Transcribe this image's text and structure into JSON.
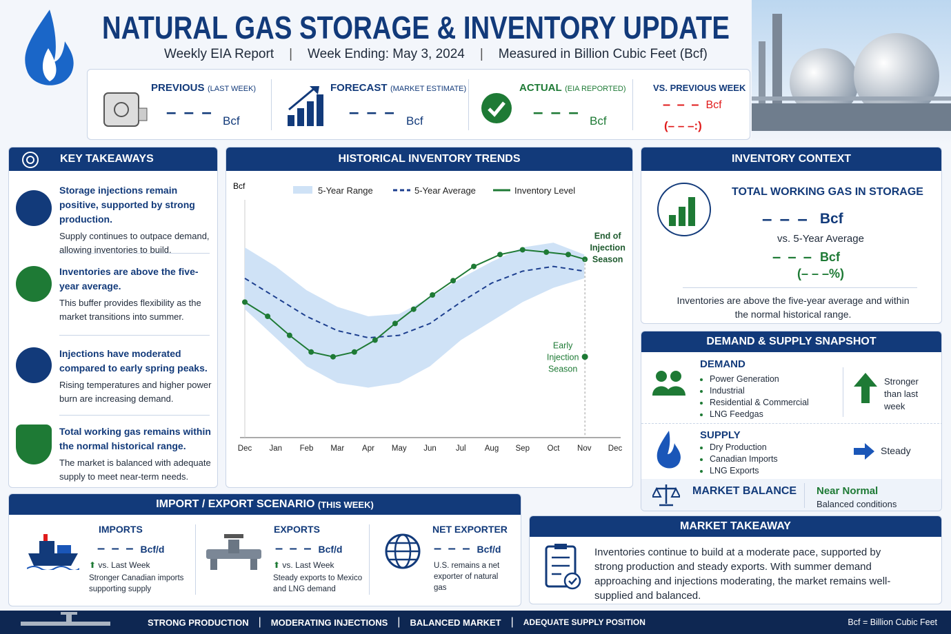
{
  "header": {
    "title": "NATURAL GAS STORAGE & INVENTORY UPDATE",
    "subtitle_parts": [
      "Weekly EIA Report",
      "Week Ending: May 3, 2024",
      "Measured in Billion Cubic Feet (Bcf)"
    ]
  },
  "summary": [
    {
      "label": "PREVIOUS",
      "note": "(LAST WEEK)",
      "value": "– – –",
      "unit": "Bcf"
    },
    {
      "label": "FORECAST",
      "note": "(MARKET ESTIMATE)",
      "value": "– – –",
      "unit": "Bcf"
    },
    {
      "label": "ACTUAL",
      "note": "(EIA REPORTED)",
      "value": "– – –",
      "unit": "Bcf"
    },
    {
      "label": "VS. PREVIOUS WEEK",
      "value": "– – –",
      "unit": "Bcf",
      "change": "(– – –:)"
    }
  ],
  "key_takeaways": {
    "title": "KEY TAKEAWAYS",
    "items": [
      {
        "heading": "Storage injections remain positive, supported by strong production.",
        "body": "Supply continues to outpace demand, allowing inventories to build."
      },
      {
        "heading": "Inventories are above the five-year average.",
        "body": "This buffer provides flexibility as the market transitions into summer."
      },
      {
        "heading": "Injections have moderated compared to early spring peaks.",
        "body": "Rising temperatures and higher power burn are increasing demand."
      },
      {
        "heading": "Total working gas remains within the normal historical range.",
        "body": "The market is balanced with adequate supply to meet near-term needs."
      }
    ]
  },
  "chart_data": {
    "type": "line",
    "title": "HISTORICAL INVENTORY TRENDS",
    "ylabel": "Bcf",
    "xlim": [
      0,
      12
    ],
    "ylim": [
      0,
      100
    ],
    "xticks": [
      {
        "value": 0,
        "label": "Dec"
      },
      {
        "value": 1,
        "label": "Jan"
      },
      {
        "value": 2,
        "label": "Feb"
      },
      {
        "value": 3,
        "label": "Mar"
      },
      {
        "value": 4,
        "label": "Apr"
      },
      {
        "value": 5,
        "label": "May"
      },
      {
        "value": 6,
        "label": "Jun"
      },
      {
        "value": 7,
        "label": "Jul"
      },
      {
        "value": 8,
        "label": "Aug"
      },
      {
        "value": 9,
        "label": "Sep"
      },
      {
        "value": 10,
        "label": "Oct"
      },
      {
        "value": 11,
        "label": "Nov"
      },
      {
        "value": 12,
        "label": "Dec"
      }
    ],
    "series": [
      {
        "name": "5-Year Range",
        "color": "#cfe2f6",
        "x": [
          0,
          1,
          2,
          3,
          4,
          5,
          6,
          7,
          8,
          9,
          10,
          11
        ],
        "upper": [
          80,
          72,
          62,
          55,
          51,
          52,
          59,
          67,
          74,
          80,
          82,
          77
        ],
        "lower": [
          54,
          42,
          30,
          23,
          21,
          23,
          30,
          41,
          49,
          57,
          63,
          67
        ]
      },
      {
        "name": "5-Year Average",
        "color": "#1d3f8f",
        "dashed": true,
        "x": [
          0,
          1,
          2,
          3,
          4,
          5,
          6,
          7,
          8,
          9,
          10,
          11
        ],
        "values": [
          67,
          59,
          51,
          45,
          42,
          43,
          48,
          57,
          65,
          70,
          72,
          70
        ]
      },
      {
        "name": "Inventory Level",
        "color": "#1e7a35",
        "markers": true,
        "x": [
          0,
          0.74,
          1.45,
          2.15,
          2.86,
          3.55,
          4.22,
          4.87,
          5.47,
          6.08,
          6.75,
          7.42,
          8.27,
          9.0,
          9.77,
          10.48,
          11.02
        ],
        "values": [
          57,
          51,
          43,
          36,
          34,
          36,
          41,
          48,
          54,
          60,
          66,
          72,
          77,
          79,
          78,
          77,
          75
        ]
      }
    ],
    "annotations": [
      {
        "text": [
          "End of",
          "Injection",
          "Season"
        ],
        "x": 11.02,
        "y": 75
      },
      {
        "text": [
          "Early",
          "Injection",
          "Season"
        ],
        "x": 11.02,
        "y": 34
      }
    ]
  },
  "inventory_context": {
    "title": "INVENTORY CONTEXT",
    "heading": "TOTAL WORKING GAS IN STORAGE",
    "value": "– – –",
    "unit": "Bcf",
    "compare": "vs. 5-Year Average",
    "compare_value": "– – –",
    "compare_unit": "Bcf",
    "compare_pct": "(– – –%)",
    "note": "Inventories are above the five-year average and within the normal historical range."
  },
  "demand_supply": {
    "title": "DEMAND & SUPPLY SNAPSHOT",
    "demand": {
      "heading": "DEMAND",
      "items": [
        "Power Generation",
        "Industrial",
        "Residential & Commercial",
        "LNG Feedgas"
      ],
      "status": "Stronger than last week"
    },
    "supply": {
      "heading": "SUPPLY",
      "items": [
        "Dry Production",
        "Canadian Imports",
        "LNG Exports"
      ],
      "status": "Steady"
    },
    "balance": {
      "heading": "MARKET BALANCE",
      "status": "Near Normal",
      "note": "Balanced conditions"
    }
  },
  "import_export": {
    "title": "IMPORT / EXPORT SCENARIO",
    "title_note": "(THIS WEEK)",
    "items": [
      {
        "heading": "IMPORTS",
        "value": "– – –",
        "unit": "Bcf/d",
        "compare": "vs. Last Week",
        "note": "Stronger Canadian imports supporting supply"
      },
      {
        "heading": "EXPORTS",
        "value": "– – –",
        "unit": "Bcf/d",
        "compare": "vs. Last Week",
        "note": "Steady exports to Mexico and LNG demand"
      },
      {
        "heading": "NET EXPORTER",
        "value": "– – –",
        "unit": "Bcf/d",
        "note": "U.S. remains a net exporter of natural gas"
      }
    ]
  },
  "market_takeaway": {
    "title": "MARKET TAKEAWAY",
    "body": "Inventories continue to build at a moderate pace, supported by strong production and steady exports. With summer demand approaching and injections moderating, the market remains well-supplied and balanced."
  },
  "footer": {
    "items": [
      "STRONG PRODUCTION",
      "MODERATING INJECTIONS",
      "BALANCED MARKET",
      "ADEQUATE SUPPLY POSITION"
    ],
    "note": "Bcf = Billion Cubic Feet"
  }
}
